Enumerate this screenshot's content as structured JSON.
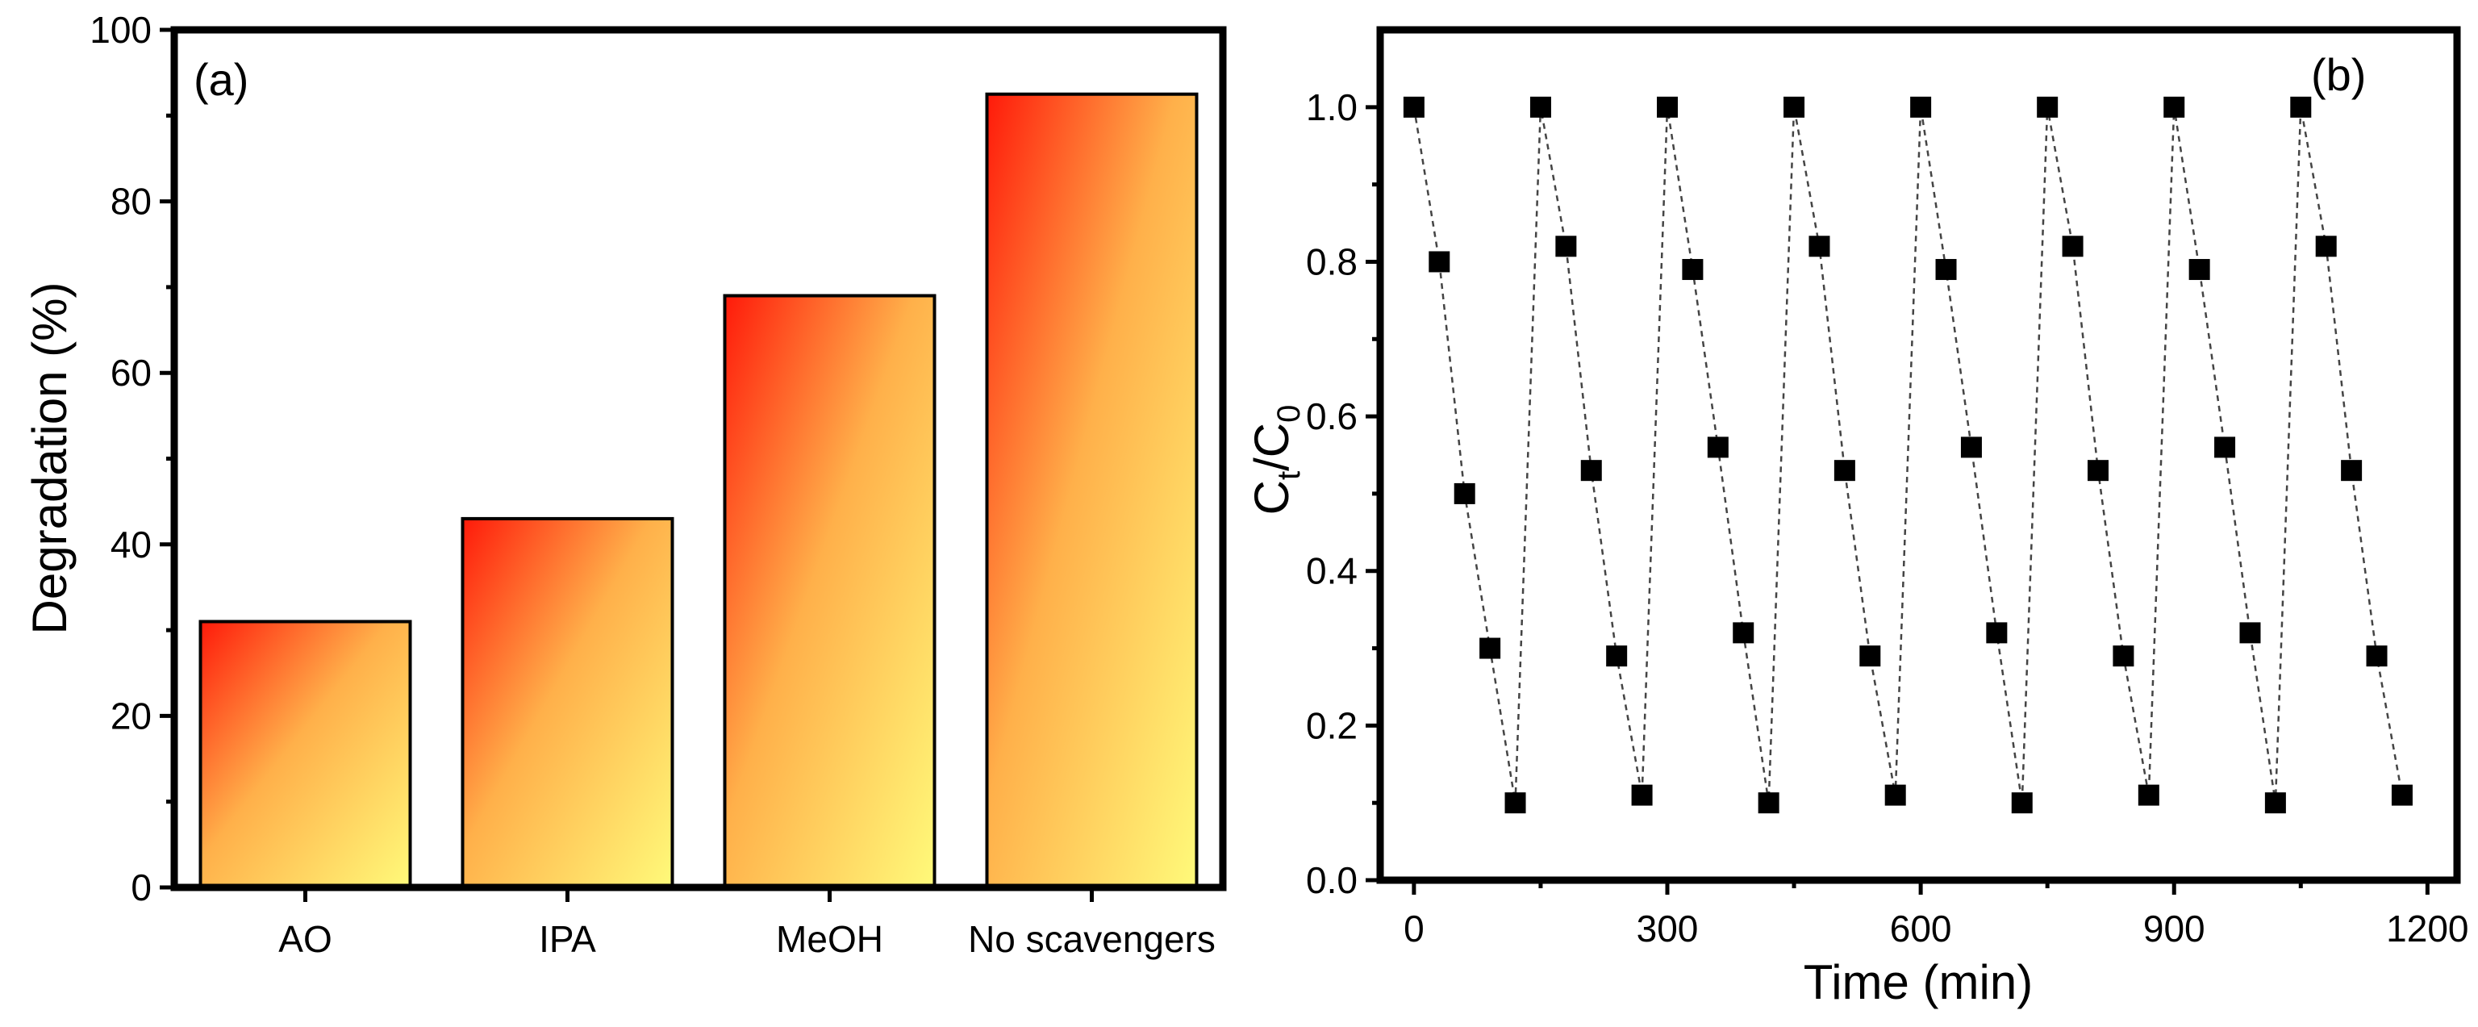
{
  "chart_data": [
    {
      "type": "bar",
      "panel_label": "(a)",
      "categories": [
        "AO",
        "IPA",
        "MeOH",
        "No scavengers"
      ],
      "values": [
        31,
        43,
        69,
        92.5
      ],
      "title": "",
      "xlabel": "",
      "ylabel": "Degradation (%)",
      "ylim": [
        0,
        100
      ],
      "yticks": [
        "0",
        "20",
        "40",
        "60",
        "80",
        "100"
      ],
      "ytick_values": [
        0,
        20,
        40,
        60,
        80,
        100
      ],
      "fill": {
        "from": "#ff1a0a",
        "mid": "#ffb04a",
        "to": "#fffa7a"
      }
    },
    {
      "type": "scatter",
      "panel_label": "(b)",
      "title": "",
      "xlabel": "Time (min)",
      "ylabel_main": "C",
      "ylabel_sub1": "t",
      "ylabel_mid": "/C",
      "ylabel_sub2": "0",
      "xlim": [
        -40,
        1235
      ],
      "ylim": [
        0,
        1.1
      ],
      "xticks": [
        "0",
        "300",
        "600",
        "900",
        "1200"
      ],
      "xtick_values": [
        0,
        300,
        600,
        900,
        1200
      ],
      "yticks": [
        "0.0",
        "0.2",
        "0.4",
        "0.6",
        "0.8",
        "1.0"
      ],
      "ytick_values": [
        0,
        0.2,
        0.4,
        0.6,
        0.8,
        1.0
      ],
      "series": [
        {
          "name": "Ct/C0",
          "marker": "square",
          "line": "dashed",
          "x": [
            0,
            30,
            60,
            90,
            120,
            150,
            180,
            210,
            240,
            270,
            300,
            330,
            360,
            390,
            420,
            450,
            480,
            510,
            540,
            570,
            600,
            630,
            660,
            690,
            720,
            750,
            780,
            810,
            840,
            870,
            900,
            930,
            960,
            990,
            1020,
            1050,
            1080,
            1110,
            1140,
            1170
          ],
          "y": [
            1.0,
            0.8,
            0.5,
            0.3,
            0.1,
            1.0,
            0.82,
            0.53,
            0.29,
            0.11,
            1.0,
            0.79,
            0.56,
            0.32,
            0.1,
            1.0,
            0.82,
            0.53,
            0.29,
            0.11,
            1.0,
            0.79,
            0.56,
            0.32,
            0.1,
            1.0,
            0.82,
            0.53,
            0.29,
            0.11,
            1.0,
            0.79,
            0.56,
            0.32,
            0.1,
            1.0,
            0.82,
            0.53,
            0.29,
            0.11
          ]
        }
      ]
    }
  ]
}
